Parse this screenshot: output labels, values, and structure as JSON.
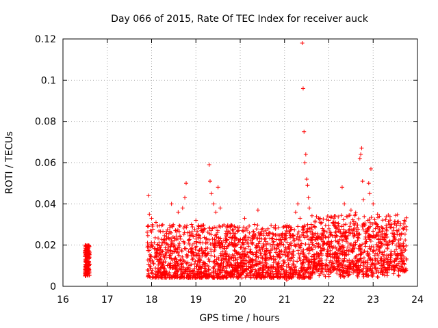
{
  "chart_data": {
    "type": "scatter",
    "title": "Day 066 of 2015, Rate Of TEC Index for receiver auck",
    "xlabel": "GPS time / hours",
    "ylabel": "ROTI / TECUs",
    "xlim": [
      16,
      24
    ],
    "ylim": [
      0,
      0.12
    ],
    "x_ticks": [
      16,
      17,
      18,
      19,
      20,
      21,
      22,
      23,
      24
    ],
    "y_ticks": [
      0,
      0.02,
      0.04,
      0.06,
      0.08,
      0.1,
      0.12
    ],
    "grid": true,
    "marker": "plus",
    "color": "#ff0000",
    "clusters": [
      {
        "x_range": [
          16.5,
          16.6
        ],
        "y_range": [
          0.005,
          0.02
        ]
      },
      {
        "x_range": [
          17.9,
          23.75
        ],
        "y_range": [
          0.004,
          0.03
        ]
      }
    ],
    "points": [
      [
        17.93,
        0.044
      ],
      [
        17.95,
        0.035
      ],
      [
        18.0,
        0.033
      ],
      [
        18.1,
        0.031
      ],
      [
        18.45,
        0.04
      ],
      [
        18.6,
        0.036
      ],
      [
        18.7,
        0.038
      ],
      [
        18.75,
        0.043
      ],
      [
        18.78,
        0.05
      ],
      [
        18.9,
        0.03
      ],
      [
        19.0,
        0.032
      ],
      [
        19.3,
        0.059
      ],
      [
        19.32,
        0.051
      ],
      [
        19.35,
        0.045
      ],
      [
        19.4,
        0.04
      ],
      [
        19.45,
        0.036
      ],
      [
        19.5,
        0.048
      ],
      [
        19.55,
        0.038
      ],
      [
        20.1,
        0.033
      ],
      [
        20.4,
        0.037
      ],
      [
        21.0,
        0.025
      ],
      [
        21.05,
        0.003
      ],
      [
        21.25,
        0.036
      ],
      [
        21.3,
        0.04
      ],
      [
        21.35,
        0.033
      ],
      [
        21.4,
        0.118
      ],
      [
        21.42,
        0.096
      ],
      [
        21.44,
        0.075
      ],
      [
        21.46,
        0.06
      ],
      [
        21.48,
        0.064
      ],
      [
        21.5,
        0.052
      ],
      [
        21.52,
        0.049
      ],
      [
        21.54,
        0.043
      ],
      [
        21.56,
        0.038
      ],
      [
        21.6,
        0.03
      ],
      [
        22.0,
        0.032
      ],
      [
        22.3,
        0.048
      ],
      [
        22.35,
        0.04
      ],
      [
        22.5,
        0.037
      ],
      [
        22.6,
        0.035
      ],
      [
        22.7,
        0.062
      ],
      [
        22.72,
        0.064
      ],
      [
        22.74,
        0.067
      ],
      [
        22.76,
        0.051
      ],
      [
        22.78,
        0.042
      ],
      [
        22.9,
        0.05
      ],
      [
        22.92,
        0.045
      ],
      [
        22.95,
        0.057
      ],
      [
        23.0,
        0.04
      ],
      [
        23.1,
        0.035
      ],
      [
        23.7,
        0.032
      ]
    ]
  }
}
